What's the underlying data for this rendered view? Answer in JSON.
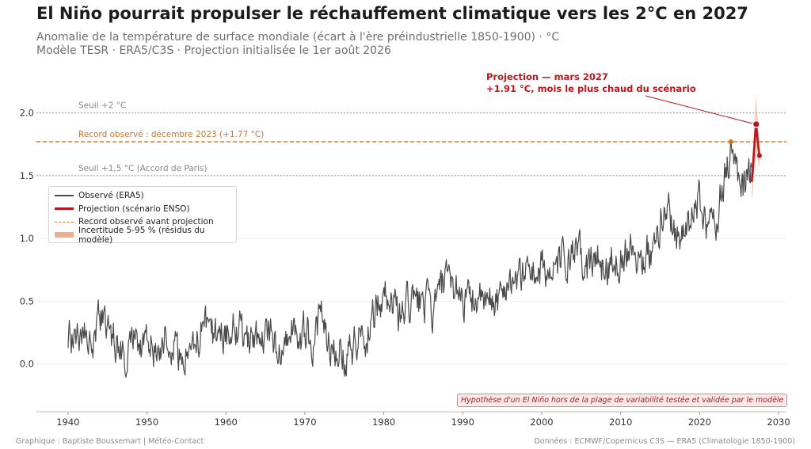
{
  "title": "El Niño pourrait propulser le réchauffement climatique vers les 2°C en 2027",
  "subtitle_1": "Anomalie de la température de surface mondiale (écart à l'ère préindustrielle 1850-1900) · °C",
  "subtitle_2": "Modèle TESR · ERA5/C3S · Projection initialisée le 1er août 2026",
  "footer_left": "Graphique : Baptiste Boussemart | Météo-Contact",
  "footer_right": "Données : ECMWF/Copernicus C3S — ERA5 (Climatologie 1850-1900)",
  "legend": {
    "observed": "Observé (ERA5)",
    "projection": "Projection (scénario ENSO)",
    "record": "Record observé avant projection",
    "uncertainty": "Incertitude 5-95 % (résidus du modèle)"
  },
  "annotation_callout_1": "Projection — mars 2027",
  "annotation_callout_2": "+1.91 °C, mois le plus chaud du scénario",
  "hypothesis_box": "Hypothèse d'un El Niño hors de la plage de variabilité testée et validée par le modèle",
  "colors": {
    "observed": "#4a4a4a",
    "projection": "#c0141c",
    "record": "#c8742a",
    "uncertainty": "#efae90",
    "threshold": "#999999"
  },
  "chart_data": {
    "type": "line",
    "xlim": [
      1936,
      2031
    ],
    "ylim": [
      -0.38,
      2.3
    ],
    "xticks": [
      1940,
      1950,
      1960,
      1970,
      1980,
      1990,
      2000,
      2010,
      2020,
      2030
    ],
    "yticks": [
      0.0,
      0.5,
      1.0,
      1.5,
      2.0
    ],
    "ytick_labels": [
      "0.0",
      "0.5",
      "1.0",
      "1.5",
      "2.0"
    ],
    "grid": "horizontal",
    "legend_position": "center-left",
    "thresholds": [
      {
        "label": "Seuil +2 °C",
        "y": 2.0
      },
      {
        "label": "Seuil +1,5 °C (Accord de Paris)",
        "y": 1.5
      }
    ],
    "record": {
      "label": "Record observé : décembre 2023 (+1.77 °C)",
      "x": 2023.96,
      "y": 1.77
    },
    "observed_anchors": {
      "description": "ERA5 monthly anomalies, 1940–mid 2026; series is a monthly curve anchored on these yearly means",
      "x": [
        1940,
        1942,
        1944,
        1946,
        1948,
        1950,
        1952,
        1954,
        1956,
        1958,
        1960,
        1962,
        1964,
        1966,
        1968,
        1970,
        1972,
        1974,
        1976,
        1978,
        1980,
        1982,
        1984,
        1986,
        1988,
        1990,
        1992,
        1994,
        1996,
        1998,
        2000,
        2002,
        2004,
        2006,
        2008,
        2010,
        2012,
        2014,
        2016,
        2018,
        2020,
        2022,
        2023,
        2024,
        2025,
        2026.6
      ],
      "y": [
        0.22,
        0.2,
        0.32,
        0.15,
        0.18,
        0.14,
        0.2,
        0.12,
        0.1,
        0.3,
        0.25,
        0.27,
        0.13,
        0.22,
        0.2,
        0.26,
        0.25,
        0.18,
        0.06,
        0.35,
        0.52,
        0.45,
        0.44,
        0.5,
        0.58,
        0.62,
        0.42,
        0.55,
        0.6,
        0.82,
        0.67,
        0.82,
        0.8,
        0.85,
        0.72,
        0.95,
        0.85,
        0.95,
        1.2,
        1.05,
        1.22,
        1.12,
        1.45,
        1.6,
        1.52,
        1.45
      ]
    },
    "projection": {
      "x": [
        2026.6,
        2026.75,
        2026.92,
        2027.08,
        2027.17,
        2027.25,
        2027.42,
        2027.58
      ],
      "y": [
        1.45,
        1.55,
        1.72,
        1.86,
        1.91,
        1.85,
        1.74,
        1.66
      ],
      "low": [
        1.3,
        1.38,
        1.52,
        1.64,
        1.7,
        1.66,
        1.6,
        1.56
      ],
      "high": [
        1.6,
        1.72,
        1.92,
        2.08,
        2.15,
        2.05,
        1.9,
        1.78
      ]
    },
    "peak": {
      "x": 2027.17,
      "y": 1.91
    }
  }
}
